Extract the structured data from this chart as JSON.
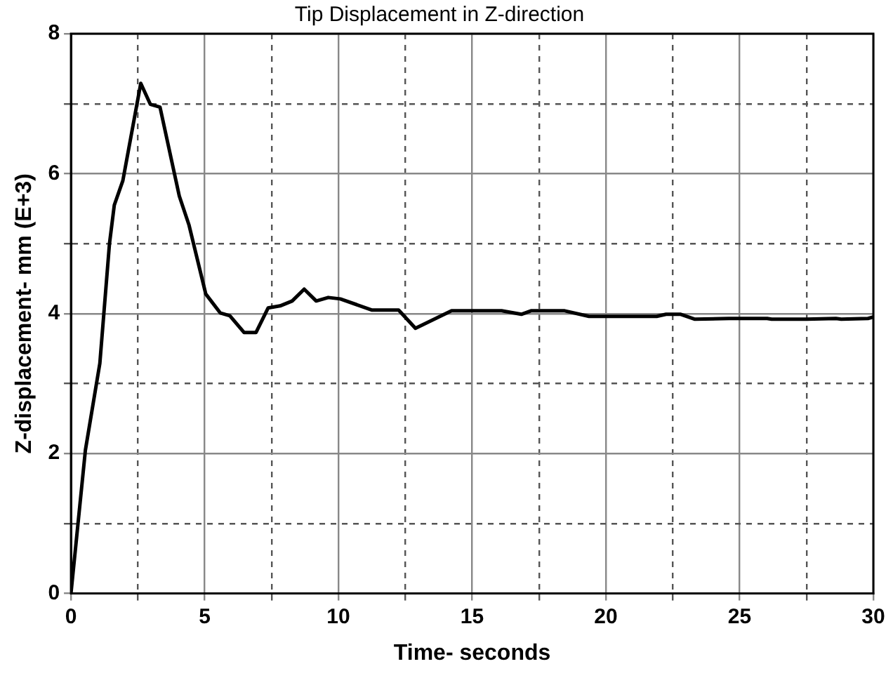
{
  "chart_data": {
    "type": "line",
    "title": "Tip Displacement in Z-direction",
    "xlabel": "Time- seconds",
    "ylabel": "Z-displacement- mm (E+3)",
    "x": [
      0,
      0.54,
      1.08,
      1.44,
      1.62,
      1.94,
      2.61,
      2.97,
      3.33,
      4.05,
      4.41,
      5.04,
      5.58,
      5.94,
      6.47,
      6.92,
      7.37,
      7.82,
      8.27,
      8.72,
      9.17,
      9.62,
      10.07,
      11.26,
      12.25,
      12.88,
      14.23,
      16.1,
      16.84,
      17.2,
      18.46,
      19.37,
      21.9,
      22.25,
      22.8,
      23.33,
      24.6,
      26.03,
      26.2,
      27.5,
      28.6,
      28.8,
      29.8,
      30
    ],
    "series": [
      {
        "color": "#000000",
        "values": [
          0,
          2.05,
          3.29,
          5.0,
          5.55,
          5.9,
          7.29,
          6.99,
          6.95,
          5.68,
          5.27,
          4.28,
          4.01,
          3.97,
          3.73,
          3.73,
          4.08,
          4.11,
          4.18,
          4.35,
          4.18,
          4.23,
          4.21,
          4.05,
          4.05,
          3.79,
          4.04,
          4.04,
          3.99,
          4.04,
          4.04,
          3.96,
          3.96,
          3.99,
          3.99,
          3.92,
          3.93,
          3.93,
          3.92,
          3.92,
          3.93,
          3.92,
          3.93,
          3.95
        ]
      }
    ],
    "xlim": [
      0,
      30
    ],
    "xticks": [
      0,
      {
        "value": 2.5,
        "label": null
      },
      5,
      {
        "value": 7.5,
        "label": null
      },
      10,
      {
        "value": 12.5,
        "label": null
      },
      15,
      {
        "value": 17.5,
        "label": null
      },
      20,
      {
        "value": 22.5,
        "label": null
      },
      25,
      {
        "value": 27.5,
        "label": null
      },
      30
    ],
    "ylim": [
      0,
      8
    ],
    "yticks": [
      0,
      {
        "value": 1,
        "label": null
      },
      2,
      {
        "value": 3,
        "label": null
      },
      4,
      {
        "value": 5,
        "label": null
      },
      6,
      {
        "value": 7,
        "label": null
      },
      8
    ],
    "grid": true,
    "legend": false,
    "marker": "none",
    "line_style": "solid"
  }
}
